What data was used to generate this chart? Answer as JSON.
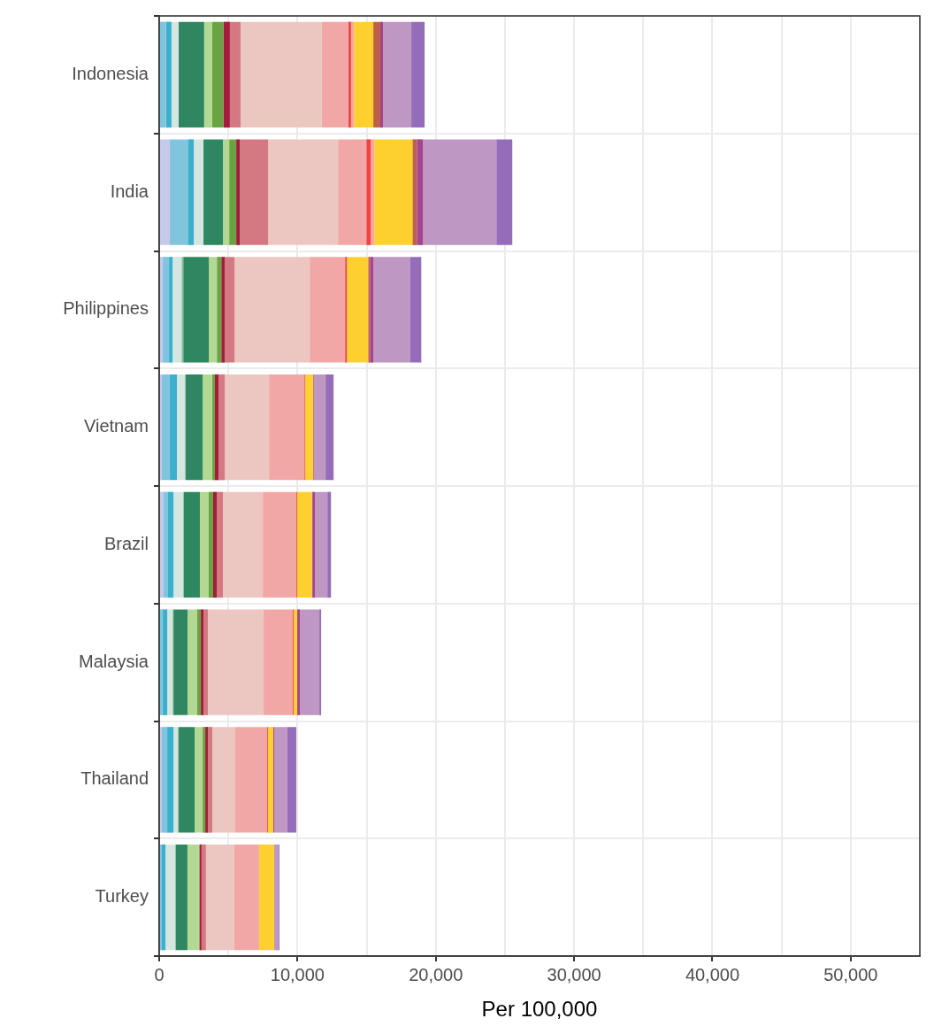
{
  "chart_data": {
    "type": "bar",
    "orientation": "horizontal",
    "stacked": true,
    "xlabel": "Per 100,000",
    "categories": [
      "Indonesia",
      "India",
      "Philippines",
      "Vietnam",
      "Brazil",
      "Malaysia",
      "Thailand",
      "Turkey"
    ],
    "series": [
      {
        "color": "#c5cae9",
        "values": [
          0,
          770,
          260,
          190,
          320,
          null,
          190,
          null
        ]
      },
      {
        "color": "#80c4de",
        "values": [
          490,
          1340,
          450,
          580,
          320,
          260,
          390,
          190
        ]
      },
      {
        "color": "#3ab0cc",
        "values": [
          400,
          390,
          260,
          510,
          390,
          320,
          450,
          260
        ]
      },
      {
        "color": "#d5e6e0",
        "values": [
          510,
          700,
          640,
          580,
          700,
          390,
          320,
          700
        ]
      },
      {
        "color": "#8fbf9f",
        "values": [
          0,
          0,
          130,
          60,
          60,
          60,
          60,
          60
        ]
      },
      {
        "color": "#2e8760",
        "values": [
          1850,
          1410,
          1850,
          1220,
          1150,
          1020,
          1150,
          830
        ]
      },
      {
        "color": "#b2d894",
        "values": [
          580,
          450,
          580,
          700,
          640,
          700,
          580,
          830
        ]
      },
      {
        "color": "#6aa343",
        "values": [
          830,
          510,
          320,
          190,
          320,
          260,
          190,
          60
        ]
      },
      {
        "color": "#a31c3d",
        "values": [
          450,
          260,
          260,
          260,
          260,
          190,
          190,
          130
        ]
      },
      {
        "color": "#d47982",
        "values": [
          770,
          2050,
          700,
          450,
          450,
          320,
          320,
          320
        ]
      },
      {
        "color": "#ecc6c1",
        "values": [
          5880,
          5050,
          5430,
          3200,
          2880,
          4030,
          1660,
          2050
        ]
      },
      {
        "color": "#f2a7a7",
        "values": [
          1920,
          2050,
          2560,
          2560,
          2430,
          2110,
          2300,
          1790
        ]
      },
      {
        "color": "#ef4444",
        "values": [
          190,
          320,
          130,
          60,
          60,
          60,
          60,
          0
        ]
      },
      {
        "color": "#f9a99a",
        "values": [
          220,
          260,
          0,
          0,
          0,
          0,
          0,
          0
        ]
      },
      {
        "color": "#fdd030",
        "values": [
          1390,
          2750,
          1540,
          580,
          1090,
          260,
          390,
          1090
        ]
      },
      {
        "color": "#bd6249",
        "values": [
          510,
          320,
          130,
          0,
          0,
          0,
          0,
          0
        ]
      },
      {
        "color": "#a6448f",
        "values": [
          190,
          450,
          260,
          60,
          190,
          190,
          60,
          0
        ]
      },
      {
        "color": "#be97c2",
        "values": [
          2050,
          5300,
          2620,
          830,
          900,
          1410,
          960,
          320
        ]
      },
      {
        "color": "#956cb9",
        "values": [
          960,
          1150,
          830,
          580,
          260,
          130,
          640,
          60
        ]
      }
    ],
    "xlim": [
      0,
      55000
    ],
    "xticks": [
      0,
      {
        "value": 5000,
        "label": null
      },
      {
        "value": 10000,
        "label": "10,000"
      },
      {
        "value": 15000,
        "label": null
      },
      {
        "value": 20000,
        "label": "20,000"
      },
      {
        "value": 25000,
        "label": null
      },
      {
        "value": 30000,
        "label": "30,000"
      },
      {
        "value": 35000,
        "label": null
      },
      {
        "value": 40000,
        "label": "40,000"
      },
      {
        "value": 45000,
        "label": null
      },
      {
        "value": 50000,
        "label": "50,000"
      },
      {
        "value": 55000,
        "label": null
      }
    ],
    "grid": true,
    "legend": false
  }
}
